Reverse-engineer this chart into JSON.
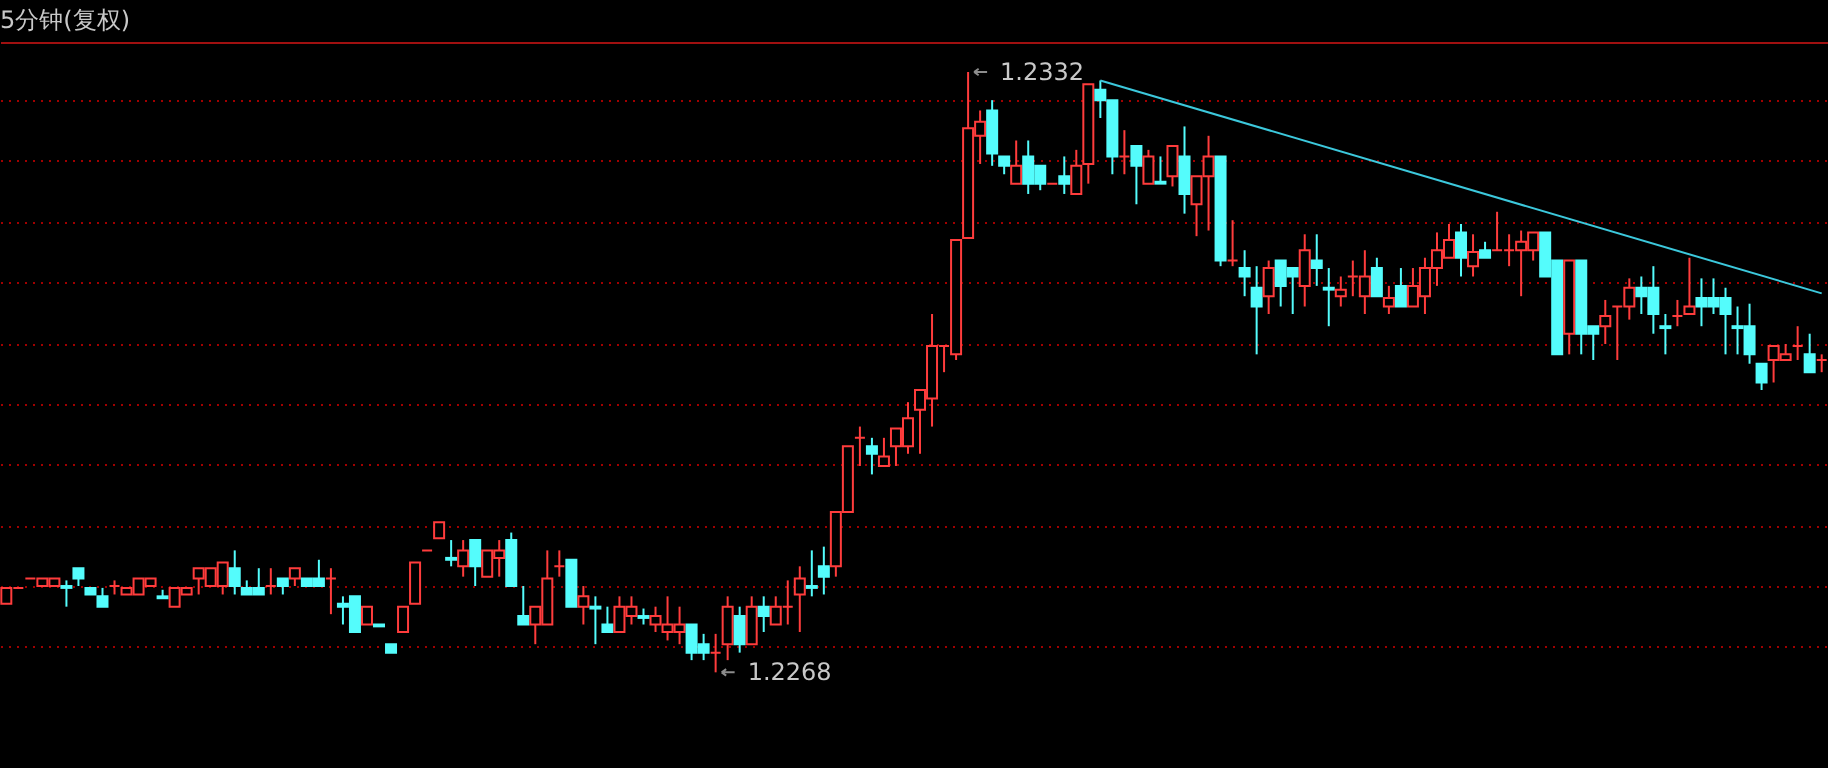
{
  "chart_data": {
    "type": "candlestick",
    "title": "5分钟(复权)",
    "categories": [
      null,
      null,
      null,
      null,
      null,
      null,
      null,
      null,
      null,
      null,
      null,
      null,
      null,
      null,
      null,
      null,
      null,
      null,
      null,
      null,
      null,
      null,
      null,
      null,
      null,
      null,
      null,
      null,
      null,
      null,
      null,
      null,
      null,
      null,
      null,
      null,
      null,
      null,
      null,
      null,
      null,
      null,
      null,
      null,
      null,
      null,
      null,
      null,
      null,
      null,
      null,
      null,
      null,
      null,
      null,
      null,
      null,
      null,
      null,
      null,
      null,
      null,
      null,
      null,
      null,
      null,
      null,
      null,
      null,
      null,
      null,
      null,
      null,
      null,
      null,
      null,
      null,
      null,
      null,
      null,
      null,
      null,
      null,
      null,
      null,
      null,
      null,
      null,
      null,
      null,
      null,
      null,
      null,
      null,
      null,
      null,
      null,
      null,
      null,
      null,
      null,
      null,
      null,
      null,
      null,
      null,
      null,
      null,
      null,
      null,
      null,
      null,
      null,
      null,
      null,
      null,
      null,
      null,
      null,
      null,
      null,
      null,
      null,
      null,
      null,
      null,
      null,
      null,
      null,
      null,
      null,
      null,
      null,
      null,
      null,
      null,
      null,
      null,
      null,
      null,
      null,
      null,
      null,
      null,
      null,
      null,
      null,
      null,
      null,
      null,
      null,
      null
    ],
    "ohlc": [
      [
        1.22753,
        1.2277,
        1.22753,
        1.2277
      ],
      [
        1.2277,
        1.2277,
        1.2277,
        1.2277
      ],
      [
        1.2278,
        1.2278,
        1.2278,
        1.2278
      ],
      [
        1.22772,
        1.2278,
        1.22772,
        1.2278
      ],
      [
        1.22772,
        1.2278,
        1.22772,
        1.2278
      ],
      [
        1.22772,
        1.22778,
        1.2275,
        1.2277
      ],
      [
        1.22791,
        1.22791,
        1.22772,
        1.2278
      ],
      [
        1.2277,
        1.2277,
        1.22763,
        1.22763
      ],
      [
        1.22761,
        1.2277,
        1.2275,
        1.2275
      ],
      [
        1.22772,
        1.22778,
        1.22763,
        1.22772
      ],
      [
        1.22763,
        1.2277,
        1.22763,
        1.2277
      ],
      [
        1.22763,
        1.2278,
        1.22763,
        1.2278
      ],
      [
        1.22772,
        1.2278,
        1.22772,
        1.2278
      ],
      [
        1.22761,
        1.22768,
        1.22759,
        1.22759
      ],
      [
        1.2275,
        1.2277,
        1.2275,
        1.2277
      ],
      [
        1.22763,
        1.2277,
        1.22763,
        1.2277
      ],
      [
        1.2278,
        1.22791,
        1.22763,
        1.22791
      ],
      [
        1.22772,
        1.22791,
        1.22772,
        1.22791
      ],
      [
        1.22772,
        1.22797,
        1.22763,
        1.22797
      ],
      [
        1.22791,
        1.2281,
        1.22763,
        1.22772
      ],
      [
        1.2277,
        1.22778,
        1.22763,
        1.22763
      ],
      [
        1.2277,
        1.22791,
        1.22763,
        1.22763
      ],
      [
        1.22772,
        1.22791,
        1.22763,
        1.22772
      ],
      [
        1.2278,
        1.2278,
        1.22763,
        1.22772
      ],
      [
        1.2278,
        1.22791,
        1.22772,
        1.22791
      ],
      [
        1.2278,
        1.2278,
        1.22772,
        1.22772
      ],
      [
        1.2278,
        1.228,
        1.22772,
        1.22772
      ],
      [
        1.2278,
        1.22791,
        1.22742,
        1.2278
      ],
      [
        1.22753,
        1.22761,
        1.22731,
        1.2275
      ],
      [
        1.22761,
        1.22761,
        1.22723,
        1.22723
      ],
      [
        1.22731,
        1.2275,
        1.22731,
        1.2275
      ],
      [
        1.22731,
        1.22731,
        1.22729,
        1.22729
      ],
      [
        1.2271,
        1.2271,
        1.22701,
        1.22701
      ],
      [
        1.22723,
        1.2275,
        1.22723,
        1.2275
      ],
      [
        1.22753,
        1.22797,
        1.22753,
        1.22797
      ],
      [
        1.2281,
        1.2281,
        1.2281,
        1.2281
      ],
      [
        1.22823,
        1.2284,
        1.22823,
        1.2284
      ],
      [
        1.22802,
        1.22821,
        1.22793,
        1.228
      ],
      [
        1.22793,
        1.22821,
        1.22782,
        1.2281
      ],
      [
        1.22821,
        1.22821,
        1.22772,
        1.22793
      ],
      [
        1.22782,
        1.2281,
        1.22782,
        1.2281
      ],
      [
        1.22802,
        1.22821,
        1.22782,
        1.2281
      ],
      [
        1.22821,
        1.22829,
        1.22772,
        1.22772
      ],
      [
        1.2274,
        1.22772,
        1.22731,
        1.22731
      ],
      [
        1.22731,
        1.2275,
        1.2271,
        1.2275
      ],
      [
        1.22731,
        1.2281,
        1.22731,
        1.2278
      ],
      [
        1.22793,
        1.2281,
        1.22782,
        1.22793
      ],
      [
        1.228,
        1.228,
        1.2275,
        1.2275
      ],
      [
        1.2275,
        1.22772,
        1.22731,
        1.22761
      ],
      [
        1.2275,
        1.22761,
        1.2271,
        1.22748
      ],
      [
        1.22731,
        1.2275,
        1.22723,
        1.22723
      ],
      [
        1.22723,
        1.22761,
        1.22723,
        1.2275
      ],
      [
        1.2274,
        1.22761,
        1.22731,
        1.2275
      ],
      [
        1.2274,
        1.22748,
        1.22731,
        1.22738
      ],
      [
        1.22731,
        1.2275,
        1.22723,
        1.2274
      ],
      [
        1.22723,
        1.22761,
        1.22714,
        1.22731
      ],
      [
        1.22723,
        1.2275,
        1.2271,
        1.22731
      ],
      [
        1.22731,
        1.22731,
        1.22693,
        1.22701
      ],
      [
        1.2271,
        1.22721,
        1.22693,
        1.22701
      ],
      [
        1.22701,
        1.22721,
        1.2268,
        1.22701
      ],
      [
        1.2271,
        1.22761,
        1.22693,
        1.2275
      ],
      [
        1.2274,
        1.2275,
        1.22701,
        1.2271
      ],
      [
        1.2271,
        1.22761,
        1.2271,
        1.2275
      ],
      [
        1.2275,
        1.22761,
        1.22723,
        1.2274
      ],
      [
        1.22731,
        1.22761,
        1.22731,
        1.2275
      ],
      [
        1.2275,
        1.22778,
        1.22731,
        1.2275
      ],
      [
        1.22763,
        1.22793,
        1.22723,
        1.2278
      ],
      [
        1.22772,
        1.2281,
        1.22761,
        1.2277
      ],
      [
        1.22793,
        1.22814,
        1.22763,
        1.22782
      ],
      [
        1.22793,
        1.22851,
        1.22782,
        1.22851
      ],
      [
        1.22851,
        1.22921,
        1.22851,
        1.22921
      ],
      [
        1.2293,
        1.22942,
        1.229,
        1.2293
      ],
      [
        1.22921,
        1.2293,
        1.22891,
        1.22913
      ],
      [
        1.229,
        1.2293,
        1.229,
        1.2291
      ],
      [
        1.22921,
        1.2294,
        1.229,
        1.2294
      ],
      [
        1.22921,
        1.22968,
        1.22913,
        1.22951
      ],
      [
        1.2296,
        1.22981,
        1.22913,
        1.22981
      ],
      [
        1.22972,
        1.23062,
        1.22942,
        1.23028
      ],
      [
        1.23028,
        1.23028,
        1.23,
        1.23028
      ],
      [
        1.23019,
        1.23141,
        1.23013,
        1.23141
      ],
      [
        1.23143,
        1.2332,
        1.23143,
        1.2326
      ],
      [
        1.23252,
        1.23279,
        1.23222,
        1.23267
      ],
      [
        1.23279,
        1.2329,
        1.2322,
        1.23233
      ],
      [
        1.2323,
        1.2323,
        1.23211,
        1.2322
      ],
      [
        1.23201,
        1.23247,
        1.23201,
        1.2322
      ],
      [
        1.2323,
        1.23247,
        1.2319,
        1.23201
      ],
      [
        1.2322,
        1.2322,
        1.23194,
        1.23201
      ],
      [
        1.23201,
        1.23201,
        1.23201,
        1.23201
      ],
      [
        1.23209,
        1.2323,
        1.2319,
        1.23201
      ],
      [
        1.2319,
        1.23237,
        1.2319,
        1.2322
      ],
      [
        1.23222,
        1.23307,
        1.23201,
        1.23307
      ],
      [
        1.23301,
        1.23311,
        1.23271,
        1.2329
      ],
      [
        1.2329,
        1.2329,
        1.23211,
        1.2323
      ],
      [
        1.2323,
        1.23258,
        1.23211,
        1.2323
      ],
      [
        1.23241,
        1.23241,
        1.23179,
        1.2322
      ],
      [
        1.23201,
        1.23237,
        1.23201,
        1.2323
      ],
      [
        1.23203,
        1.2323,
        1.23201,
        1.23201
      ],
      [
        1.23209,
        1.23241,
        1.23198,
        1.23241
      ],
      [
        1.2323,
        1.23262,
        1.23169,
        1.2319
      ],
      [
        1.23179,
        1.23209,
        1.23145,
        1.23209
      ],
      [
        1.23209,
        1.23252,
        1.23151,
        1.2323
      ],
      [
        1.2323,
        1.2323,
        1.23113,
        1.23119
      ],
      [
        1.23119,
        1.23162,
        1.23113,
        1.23119
      ],
      [
        1.23111,
        1.2313,
        1.23081,
        1.23102
      ],
      [
        1.2309,
        1.23113,
        1.23019,
        1.2307
      ],
      [
        1.23081,
        1.23119,
        1.23062,
        1.23111
      ],
      [
        1.23119,
        1.23119,
        1.2307,
        1.23092
      ],
      [
        1.23111,
        1.23111,
        1.23062,
        1.23102
      ],
      [
        1.23092,
        1.23147,
        1.2307,
        1.2313
      ],
      [
        1.23119,
        1.23147,
        1.23092,
        1.23111
      ],
      [
        1.2309,
        1.23111,
        1.23049,
        1.23088
      ],
      [
        1.23081,
        1.23102,
        1.2307,
        1.23088
      ],
      [
        1.23102,
        1.23119,
        1.23081,
        1.23102
      ],
      [
        1.23081,
        1.2313,
        1.23062,
        1.23102
      ],
      [
        1.23111,
        1.23122,
        1.23081,
        1.23081
      ],
      [
        1.2307,
        1.23092,
        1.23062,
        1.23079
      ],
      [
        1.23092,
        1.23111,
        1.2307,
        1.2307
      ],
      [
        1.2307,
        1.23111,
        1.2307,
        1.23092
      ],
      [
        1.23081,
        1.23122,
        1.23062,
        1.23111
      ],
      [
        1.23111,
        1.23149,
        1.23092,
        1.2313
      ],
      [
        1.23122,
        1.23158,
        1.23122,
        1.23141
      ],
      [
        1.23149,
        1.23158,
        1.23102,
        1.23122
      ],
      [
        1.23113,
        1.23147,
        1.23102,
        1.23128
      ],
      [
        1.2313,
        1.23139,
        1.23122,
        1.23122
      ],
      [
        1.2313,
        1.23171,
        1.2313,
        1.2313
      ],
      [
        1.2313,
        1.23147,
        1.23113,
        1.2313
      ],
      [
        1.2313,
        1.23151,
        1.23081,
        1.23139
      ],
      [
        1.2313,
        1.23149,
        1.23119,
        1.23149
      ],
      [
        1.23149,
        1.23149,
        1.23102,
        1.23102
      ],
      [
        1.23119,
        1.23119,
        1.23019,
        1.23019
      ],
      [
        1.23041,
        1.23119,
        1.23019,
        1.23119
      ],
      [
        1.23119,
        1.23119,
        1.23019,
        1.23041
      ],
      [
        1.23049,
        1.23049,
        1.23013,
        1.23041
      ],
      [
        1.23049,
        1.23077,
        1.2303,
        1.2306
      ],
      [
        1.2307,
        1.2307,
        1.23013,
        1.2307
      ],
      [
        1.2307,
        1.231,
        1.23056,
        1.2309
      ],
      [
        1.2309,
        1.23102,
        1.23062,
        1.23081
      ],
      [
        1.2309,
        1.23113,
        1.23041,
        1.23062
      ],
      [
        1.23049,
        1.23062,
        1.23019,
        1.23047
      ],
      [
        1.2306,
        1.23077,
        1.23049,
        1.2306
      ],
      [
        1.23062,
        1.23122,
        1.23062,
        1.2307
      ],
      [
        1.23079,
        1.231,
        1.23049,
        1.2307
      ],
      [
        1.23079,
        1.231,
        1.23062,
        1.2307
      ],
      [
        1.23079,
        1.2309,
        1.23019,
        1.23062
      ],
      [
        1.23049,
        1.2307,
        1.23019,
        1.23047
      ],
      [
        1.23049,
        1.23073,
        1.23009,
        1.23019
      ],
      [
        1.23009,
        1.23009,
        1.22981,
        1.22989
      ],
      [
        1.23013,
        1.23028,
        1.22989,
        1.23028
      ],
      [
        1.23013,
        1.2303,
        1.23013,
        1.23019
      ],
      [
        1.23028,
        1.23049,
        1.23013,
        1.23028
      ],
      [
        1.23019,
        1.23041,
        1.23,
        1.23
      ],
      [
        1.23013,
        1.23019,
        1.23,
        1.23013
      ]
    ],
    "colors": [
      "#ff3c3c",
      "#ff3c3c",
      "#ff3c3c",
      "#ff3c3c",
      "#ff3c3c",
      "#54fcfc",
      "#54fcfc",
      "#54fcfc",
      "#54fcfc",
      "#ff3c3c",
      "#ff3c3c",
      "#ff3c3c",
      "#ff3c3c",
      "#54fcfc",
      "#ff3c3c",
      "#ff3c3c",
      "#ff3c3c",
      "#ff3c3c",
      "#ff3c3c",
      "#54fcfc",
      "#54fcfc",
      "#54fcfc",
      "#ff3c3c",
      "#54fcfc",
      "#ff3c3c",
      "#54fcfc",
      "#54fcfc",
      "#ff3c3c",
      "#54fcfc",
      "#54fcfc",
      "#ff3c3c",
      "#54fcfc",
      "#54fcfc",
      "#ff3c3c",
      "#ff3c3c",
      "#ff3c3c",
      "#ff3c3c",
      "#54fcfc",
      "#ff3c3c",
      "#54fcfc",
      "#ff3c3c",
      "#ff3c3c",
      "#54fcfc",
      "#54fcfc",
      "#ff3c3c",
      "#ff3c3c",
      "#ff3c3c",
      "#54fcfc",
      "#ff3c3c",
      "#54fcfc",
      "#54fcfc",
      "#ff3c3c",
      "#ff3c3c",
      "#54fcfc",
      "#ff3c3c",
      "#ff3c3c",
      "#ff3c3c",
      "#54fcfc",
      "#54fcfc",
      "#ff3c3c",
      "#ff3c3c",
      "#54fcfc",
      "#ff3c3c",
      "#54fcfc",
      "#ff3c3c",
      "#ff3c3c",
      "#ff3c3c",
      "#54fcfc",
      "#54fcfc",
      "#ff3c3c",
      "#ff3c3c",
      "#ff3c3c",
      "#54fcfc",
      "#ff3c3c",
      "#ff3c3c",
      "#ff3c3c",
      "#ff3c3c",
      "#ff3c3c",
      "#ff3c3c",
      "#ff3c3c",
      "#ff3c3c",
      "#ff3c3c",
      "#54fcfc",
      "#54fcfc",
      "#ff3c3c",
      "#54fcfc",
      "#54fcfc",
      "#ff3c3c",
      "#54fcfc",
      "#ff3c3c",
      "#ff3c3c",
      "#54fcfc",
      "#54fcfc",
      "#ff3c3c",
      "#54fcfc",
      "#ff3c3c",
      "#54fcfc",
      "#ff3c3c",
      "#54fcfc",
      "#ff3c3c",
      "#ff3c3c",
      "#54fcfc",
      "#ff3c3c",
      "#54fcfc",
      "#54fcfc",
      "#ff3c3c",
      "#54fcfc",
      "#54fcfc",
      "#ff3c3c",
      "#54fcfc",
      "#54fcfc",
      "#ff3c3c",
      "#ff3c3c",
      "#ff3c3c",
      "#54fcfc",
      "#ff3c3c",
      "#54fcfc",
      "#ff3c3c",
      "#ff3c3c",
      "#ff3c3c",
      "#ff3c3c",
      "#54fcfc",
      "#ff3c3c",
      "#54fcfc",
      "#ff3c3c",
      "#ff3c3c",
      "#ff3c3c",
      "#ff3c3c",
      "#54fcfc",
      "#54fcfc",
      "#ff3c3c",
      "#54fcfc",
      "#54fcfc",
      "#ff3c3c",
      "#ff3c3c",
      "#ff3c3c",
      "#54fcfc",
      "#54fcfc",
      "#54fcfc",
      "#ff3c3c",
      "#ff3c3c",
      "#54fcfc",
      "#54fcfc",
      "#54fcfc",
      "#54fcfc",
      "#54fcfc",
      "#54fcfc",
      "#ff3c3c",
      "#ff3c3c",
      "#ff3c3c",
      "#54fcfc",
      "#ff3c3c"
    ],
    "series": [
      {
        "type": "line",
        "color": "#3cc8dc",
        "values": [
          null,
          null,
          null,
          null,
          null,
          null,
          null,
          null,
          null,
          null,
          null,
          null,
          null,
          null,
          null,
          null,
          null,
          null,
          null,
          null,
          null,
          null,
          null,
          null,
          null,
          null,
          null,
          null,
          null,
          null,
          null,
          null,
          null,
          null,
          null,
          null,
          null,
          null,
          null,
          null,
          null,
          null,
          null,
          null,
          null,
          null,
          null,
          null,
          null,
          null,
          null,
          null,
          null,
          null,
          null,
          null,
          null,
          null,
          null,
          null,
          null,
          null,
          null,
          null,
          null,
          null,
          null,
          null,
          null,
          null,
          null,
          null,
          null,
          null,
          null,
          null,
          null,
          null,
          null,
          null,
          null,
          null,
          null,
          null,
          null,
          null,
          null,
          null,
          null,
          null,
          null,
          1.23311,
          null,
          null,
          null,
          null,
          null,
          null,
          null,
          null,
          null,
          null,
          null,
          null,
          null,
          null,
          null,
          null,
          null,
          null,
          null,
          null,
          null,
          null,
          null,
          null,
          null,
          null,
          null,
          null,
          null,
          null,
          null,
          null,
          null,
          null,
          null,
          null,
          null,
          null,
          null,
          null,
          null,
          null,
          null,
          null,
          null,
          null,
          null,
          null,
          null,
          null,
          null,
          null,
          null,
          null,
          null,
          null,
          null,
          null,
          null,
          1.23084
        ]
      }
    ],
    "annotations": [
      "1.2332",
      "1.2268"
    ],
    "ylim": [
      1.22578,
      1.23352
    ],
    "yticks": [
      {
        "value": 1.2329,
        "label": null
      },
      {
        "value": 1.23226,
        "label": null
      },
      {
        "value": 1.2316,
        "label": null
      },
      {
        "value": 1.23096,
        "label": null
      },
      {
        "value": 1.2303,
        "label": null
      },
      {
        "value": 1.22966,
        "label": null
      },
      {
        "value": 1.22902,
        "label": null
      },
      {
        "value": 1.22836,
        "label": null
      },
      {
        "value": 1.22772,
        "label": null
      },
      {
        "value": 1.22708,
        "label": null
      }
    ],
    "grid": "y"
  }
}
